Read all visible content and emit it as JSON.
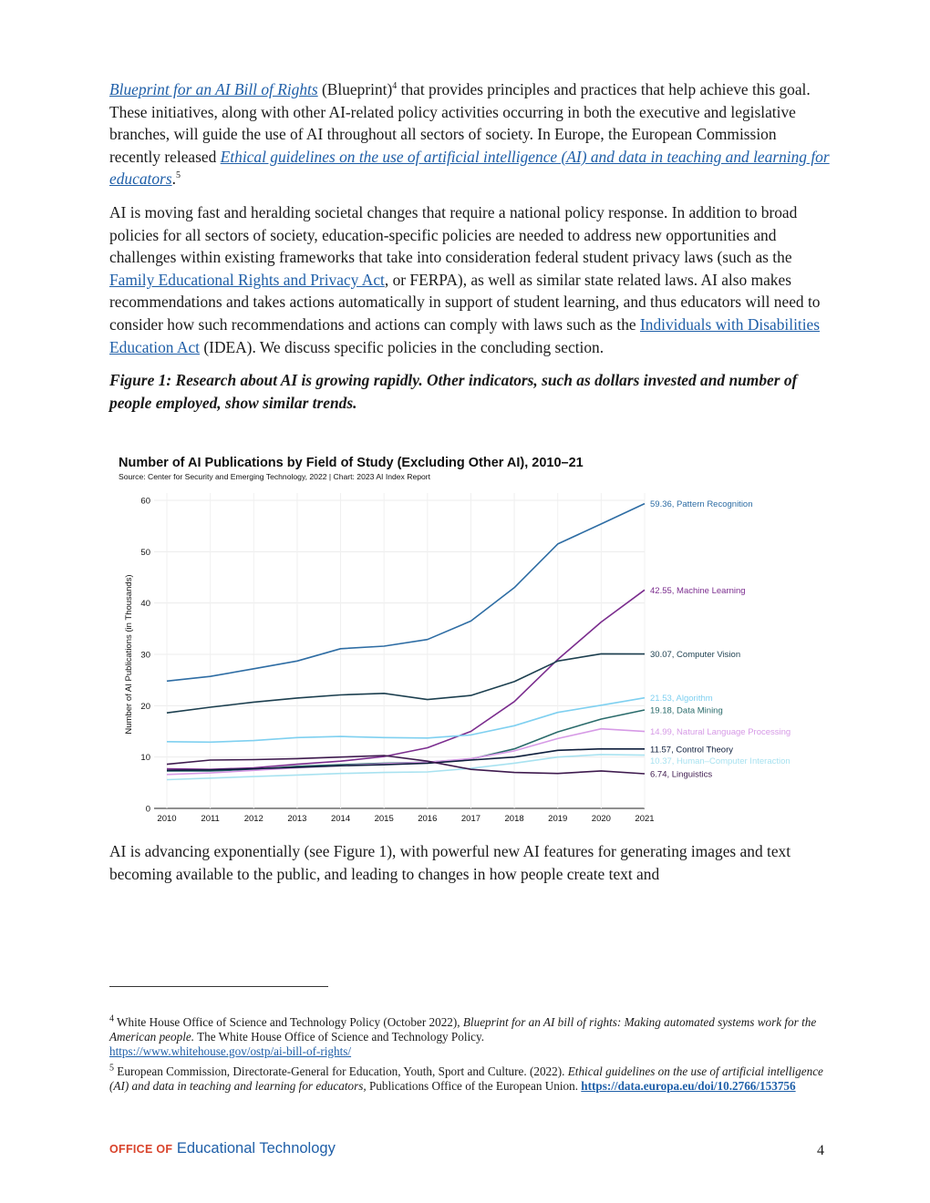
{
  "para1": {
    "link_blueprint": "Blueprint for an AI Bill of Rights",
    "t1": " (Blueprint)",
    "sup1": "4",
    "t2": " that provides principles and practices that help achieve this goal. These initiatives, along with other AI-related policy activities occurring in both the executive and legislative branches, will guide the use of AI throughout all sectors of society. In Europe, the European Commission recently released ",
    "link_ethical": "Ethical guidelines on the use of artificial intelligence (AI) and data in teaching and learning for educators",
    "t3": ".",
    "sup2": "5"
  },
  "para2": {
    "t1": "AI is moving fast and heralding societal changes that require a national policy response. In addition to broad policies for all sectors of society, education-specific policies are needed to address new opportunities and challenges within existing frameworks that take into consideration federal student privacy laws (such as the ",
    "link_ferpa": "Family Educational Rights and Privacy Act",
    "t2": ", or FERPA), as well as similar state related laws. AI also makes recommendations and takes actions automatically in support of student learning, and thus educators will need to consider how such recommendations and actions can comply with laws such as the ",
    "link_idea": "Individuals with Disabilities Education Act",
    "t3": " (IDEA). We discuss specific policies in the concluding section."
  },
  "figure_caption": "Figure 1: Research about AI is growing rapidly. Other indicators, such as dollars invested and number of people employed, show similar trends.",
  "para3": "AI is advancing exponentially (see Figure 1), with powerful new AI features for generating images and text becoming available to the public, and leading to changes in how people create text and",
  "chart_data": {
    "type": "line",
    "title": "Number of AI Publications by Field of Study (Excluding Other AI), 2010–21",
    "subtitle": "Source: Center for Security and Emerging Technology, 2022 | Chart: 2023 AI Index Report",
    "xlabel": "",
    "ylabel": "Number of AI Publications (in Thousands)",
    "x": [
      "2010",
      "2011",
      "2012",
      "2013",
      "2014",
      "2015",
      "2016",
      "2017",
      "2018",
      "2019",
      "2020",
      "2021"
    ],
    "ylim": [
      0,
      60
    ],
    "yticks": [
      "0",
      "10",
      "20",
      "30",
      "40",
      "50",
      "60"
    ],
    "grid": true,
    "series": [
      {
        "name": "Pattern Recognition",
        "label": "59.36, Pattern Recognition",
        "color": "#2e6da4",
        "values": [
          24.8,
          25.7,
          27.2,
          28.7,
          31.1,
          31.6,
          32.9,
          36.5,
          43,
          51.5,
          55.4,
          59.36
        ]
      },
      {
        "name": "Machine Learning",
        "label": "42.55, Machine Learning",
        "color": "#7b2d8e",
        "values": [
          7.7,
          7.6,
          7.9,
          8.6,
          9.2,
          10.1,
          11.8,
          15,
          20.8,
          29,
          36.3,
          42.55
        ]
      },
      {
        "name": "Computer Vision",
        "label": "30.07, Computer Vision",
        "color": "#1c3f4f",
        "values": [
          18.6,
          19.7,
          20.7,
          21.5,
          22.1,
          22.4,
          21.2,
          22,
          24.7,
          28.7,
          30.1,
          30.07
        ]
      },
      {
        "name": "Algorithm",
        "label": "21.53, Algorithm",
        "color": "#7fd0f0",
        "values": [
          13,
          12.9,
          13.2,
          13.8,
          14,
          13.8,
          13.7,
          14.3,
          16.1,
          18.7,
          20.1,
          21.53
        ]
      },
      {
        "name": "Data Mining",
        "label": "19.18, Data Mining",
        "color": "#2a6b6b",
        "values": [
          7.3,
          7.3,
          7.6,
          8.2,
          8.5,
          8.8,
          9,
          9.6,
          11.6,
          14.9,
          17.4,
          19.18
        ]
      },
      {
        "name": "Natural Language Processing",
        "label": "14.99, Natural Language Processing",
        "color": "#d69ae6",
        "values": [
          6.6,
          6.9,
          7.4,
          7.9,
          8.3,
          8.7,
          9,
          9.7,
          11.2,
          13.6,
          15.5,
          14.99
        ]
      },
      {
        "name": "Control Theory",
        "label": "11.57, Control Theory",
        "color": "#0f1f3d",
        "values": [
          7.4,
          7.5,
          7.7,
          8,
          8.3,
          8.5,
          8.8,
          9.4,
          10,
          11.3,
          11.6,
          11.57
        ]
      },
      {
        "name": "Human–Computer Interaction",
        "label": "10.37, Human–Computer Interaction",
        "color": "#a8e2f0",
        "values": [
          5.6,
          5.9,
          6.2,
          6.5,
          6.8,
          7,
          7.1,
          7.8,
          8.8,
          10,
          10.5,
          10.37
        ]
      },
      {
        "name": "Linguistics",
        "label": "6.74, Linguistics",
        "color": "#3e1a4e",
        "values": [
          8.6,
          9.4,
          9.5,
          9.7,
          10,
          10.3,
          9.2,
          7.6,
          7,
          6.8,
          7.3,
          6.74
        ]
      }
    ]
  },
  "footnotes": {
    "fn4": {
      "num": "4",
      "t1": " White House Office of Science and Technology Policy (October 2022), ",
      "italic": "Blueprint for an AI bill of rights: Making automated systems work for the American people.",
      "t2": " The White House Office of Science and Technology Policy.",
      "link": "https://www.whitehouse.gov/ostp/ai-bill-of-rights/"
    },
    "fn5": {
      "num": "5",
      "t1": " European Commission, Directorate-General for Education, Youth, Sport and Culture. (2022). ",
      "italic": "Ethical guidelines on the use of artificial intelligence (AI) and data in teaching and learning for educators,",
      "t2": " Publications Office of the European Union. ",
      "link": "https://data.europa.eu/doi/10.2766/153756"
    }
  },
  "footer": {
    "logo_part1": "OFFICE OF",
    "logo_part2": "Educational Technology",
    "page_number": "4"
  }
}
